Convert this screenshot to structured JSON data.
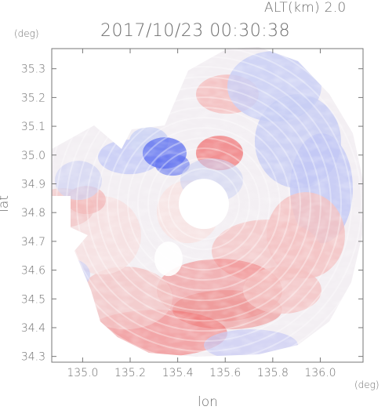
{
  "header": {
    "altitude": "ALT(km) 2.0",
    "timestamp": "2017/10/23 00:30:38"
  },
  "axes": {
    "x_title": "lon",
    "y_title": "lat",
    "x_unit": "(deg)",
    "y_unit": "(deg)",
    "x_ticks": [
      "135.0",
      "135.2",
      "135.4",
      "135.6",
      "135.8",
      "136.0"
    ],
    "y_ticks": [
      "35.3",
      "35.2",
      "35.1",
      "35.0",
      "34.9",
      "34.8",
      "34.7",
      "34.6",
      "34.5",
      "34.4",
      "34.3"
    ],
    "x_tick_values": [
      135.0,
      135.2,
      135.4,
      135.6,
      135.8,
      136.0
    ],
    "y_tick_values": [
      35.3,
      35.2,
      35.1,
      35.0,
      34.9,
      34.8,
      34.7,
      34.6,
      34.5,
      34.4,
      34.3
    ],
    "x_range": [
      134.87,
      136.18
    ],
    "y_range": [
      34.28,
      35.37
    ]
  },
  "radar": {
    "center_lon": 135.51,
    "center_lat": 34.83,
    "colors": {
      "approaching": "#5a6cf0",
      "receding": "#f06a6a",
      "neutral": "#f3eff3"
    }
  }
}
